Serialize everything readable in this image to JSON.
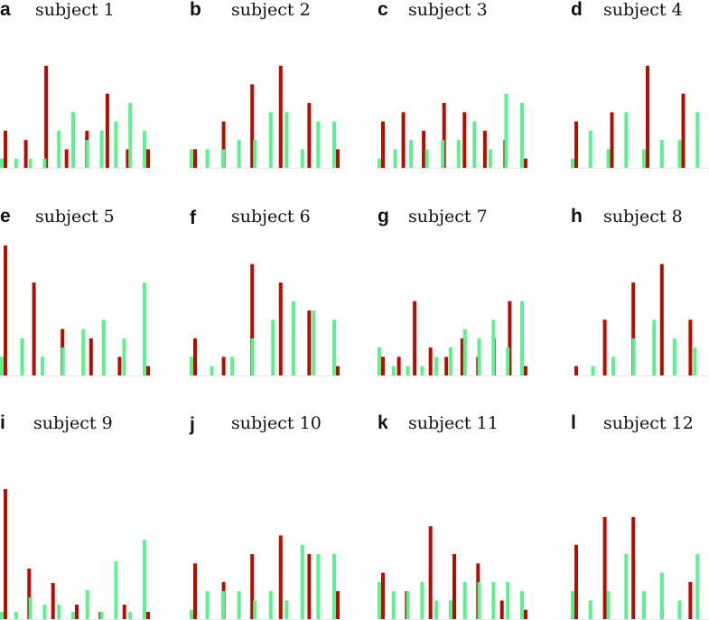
{
  "colors": {
    "red": "#b30f00",
    "green": "#5cf08e"
  },
  "chart_data": [
    {
      "type": "bar",
      "letter": "a",
      "title": "subject 1",
      "ylim": [
        0,
        14
      ],
      "series": [
        {
          "color": "red",
          "values": [
            4,
            3,
            11,
            2,
            4,
            8,
            2,
            2
          ]
        },
        {
          "color": "green",
          "values": [
            1,
            1,
            1,
            1,
            4,
            6,
            3,
            4,
            5,
            7,
            4
          ]
        }
      ]
    },
    {
      "type": "bar",
      "letter": "b",
      "title": "subject 2",
      "ylim": [
        0,
        14
      ],
      "series": [
        {
          "color": "red",
          "values": [
            2,
            5,
            9,
            11,
            7,
            2
          ]
        },
        {
          "color": "green",
          "values": [
            2,
            2,
            2,
            3,
            3,
            6,
            6,
            2,
            5,
            5
          ]
        }
      ]
    },
    {
      "type": "bar",
      "letter": "c",
      "title": "subject 3",
      "ylim": [
        0,
        14
      ],
      "series": [
        {
          "color": "red",
          "values": [
            5,
            6,
            4,
            7,
            6,
            4,
            3,
            1
          ]
        },
        {
          "color": "green",
          "values": [
            1,
            2,
            3,
            2,
            3,
            3,
            5,
            2,
            8,
            7
          ]
        }
      ]
    },
    {
      "type": "bar",
      "letter": "d",
      "title": "subject 4",
      "ylim": [
        0,
        14
      ],
      "series": [
        {
          "color": "red",
          "values": [
            5,
            6,
            11,
            8,
            6
          ]
        },
        {
          "color": "green",
          "values": [
            1,
            4,
            2,
            6,
            2,
            3,
            3,
            6,
            9
          ]
        }
      ]
    },
    {
      "type": "bar",
      "letter": "e",
      "title": "subject 5",
      "ylim": [
        0,
        14
      ],
      "series": [
        {
          "color": "red",
          "values": [
            14,
            10,
            5,
            4,
            2,
            1
          ]
        },
        {
          "color": "green",
          "values": [
            2,
            4,
            2,
            3,
            5,
            6,
            4,
            10
          ]
        }
      ]
    },
    {
      "type": "bar",
      "letter": "f",
      "title": "subject 6",
      "ylim": [
        0,
        14
      ],
      "series": [
        {
          "color": "red",
          "values": [
            4,
            2,
            12,
            10,
            7,
            1
          ]
        },
        {
          "color": "green",
          "values": [
            2,
            1,
            2,
            4,
            6,
            8,
            7,
            6
          ]
        }
      ]
    },
    {
      "type": "bar",
      "letter": "g",
      "title": "subject 7",
      "ylim": [
        0,
        14
      ],
      "series": [
        {
          "color": "red",
          "values": [
            2,
            2,
            8,
            3,
            2,
            4,
            2,
            4,
            8,
            1
          ]
        },
        {
          "color": "green",
          "values": [
            3,
            1,
            1,
            1,
            2,
            3,
            5,
            4,
            6,
            3,
            8
          ]
        }
      ]
    },
    {
      "type": "bar",
      "letter": "h",
      "title": "subject 8",
      "ylim": [
        0,
        14
      ],
      "series": [
        {
          "color": "red",
          "values": [
            1,
            6,
            10,
            12,
            6,
            1
          ]
        },
        {
          "color": "green",
          "values": [
            0,
            1,
            2,
            4,
            6,
            4,
            3,
            10
          ]
        }
      ]
    },
    {
      "type": "bar",
      "letter": "i",
      "title": "subject 9",
      "ylim": [
        0,
        18
      ],
      "series": [
        {
          "color": "red",
          "values": [
            18,
            7,
            5,
            2,
            1,
            2,
            1
          ]
        },
        {
          "color": "green",
          "values": [
            1,
            1,
            3,
            2,
            2,
            1,
            4,
            1,
            8,
            1,
            11
          ]
        }
      ]
    },
    {
      "type": "bar",
      "letter": "j",
      "title": "subject 10",
      "ylim": [
        0,
        14
      ],
      "series": [
        {
          "color": "red",
          "values": [
            6,
            4,
            7,
            9,
            7,
            3
          ]
        },
        {
          "color": "green",
          "values": [
            1,
            3,
            3,
            3,
            2,
            3,
            2,
            8,
            7,
            7
          ]
        }
      ]
    },
    {
      "type": "bar",
      "letter": "k",
      "title": "subject 11",
      "ylim": [
        0,
        14
      ],
      "series": [
        {
          "color": "red",
          "values": [
            5,
            3,
            10,
            7,
            6,
            2,
            1
          ]
        },
        {
          "color": "green",
          "values": [
            4,
            3,
            3,
            4,
            2,
            2,
            4,
            4,
            4,
            4,
            3
          ]
        }
      ]
    },
    {
      "type": "bar",
      "letter": "l",
      "title": "subject 12",
      "ylim": [
        0,
        14
      ],
      "series": [
        {
          "color": "red",
          "values": [
            8,
            11,
            11,
            1,
            4,
            1
          ]
        },
        {
          "color": "green",
          "values": [
            3,
            2,
            3,
            7,
            3,
            5,
            2,
            7,
            8
          ]
        }
      ]
    }
  ]
}
